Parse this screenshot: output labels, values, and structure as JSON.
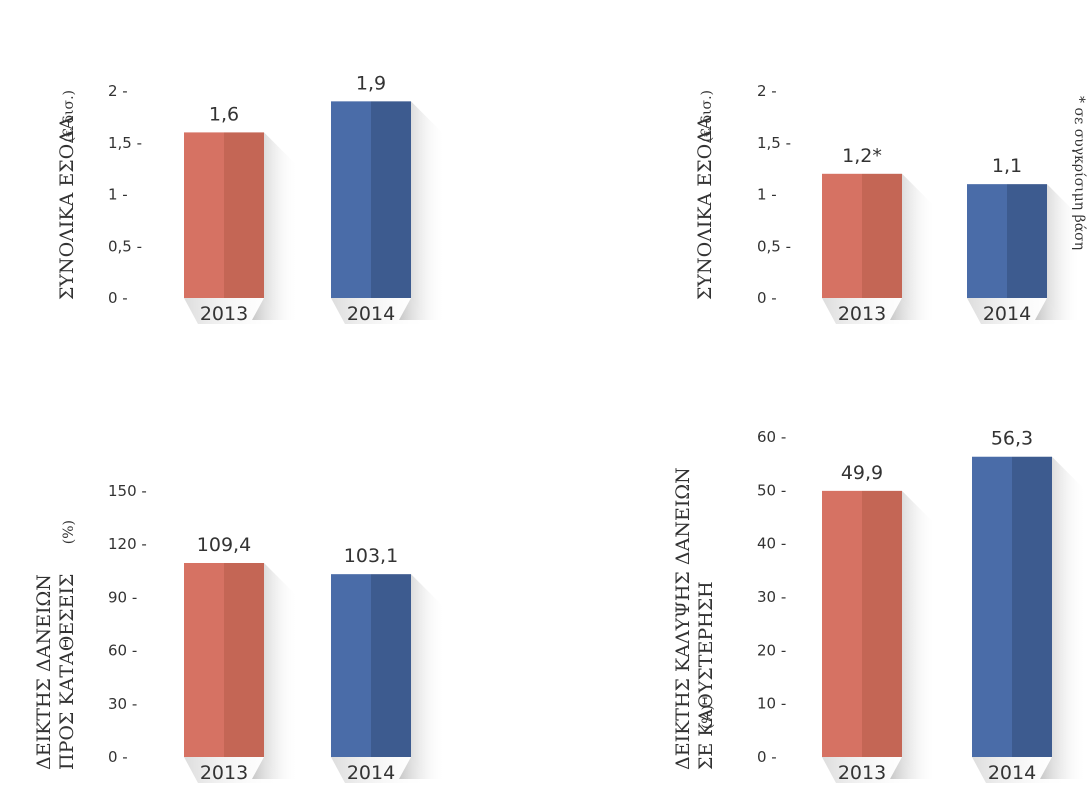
{
  "colors": {
    "bar_2013": "#d67263",
    "bar_2013_dark": "#c46655",
    "bar_2014": "#4a6ca8",
    "bar_2014_dark": "#3d5b8f",
    "shadow": "#cfcfcf"
  },
  "chart_data": [
    {
      "type": "bar",
      "ylabel": "ΣΥΝΟΛΙΚΑ ΕΣΟΔΑ",
      "ylabel_unit": "(€ δισ.)",
      "categories": [
        "2013",
        "2014"
      ],
      "values": [
        1.6,
        1.9
      ],
      "value_labels": [
        "1,6",
        "1,9"
      ],
      "yticks": [
        0,
        0.5,
        1,
        1.5,
        2
      ],
      "ytick_labels": [
        "0 -",
        "0,5 -",
        "1 -",
        "1,5 -",
        "2 -"
      ],
      "ylim": [
        0,
        2
      ],
      "grid": false
    },
    {
      "type": "bar",
      "ylabel": "ΣΥΝΟΛΙΚΑ ΕΣΟΔΑ",
      "ylabel_unit": "(€ δισ.)",
      "categories": [
        "2013",
        "2014"
      ],
      "values": [
        1.2,
        1.1
      ],
      "value_labels": [
        "1,2*",
        "1,1"
      ],
      "yticks": [
        0,
        0.5,
        1,
        1.5,
        2
      ],
      "ytick_labels": [
        "0 -",
        "0,5 -",
        "1 -",
        "1,5 -",
        "2 -"
      ],
      "ylim": [
        0,
        2
      ],
      "grid": false,
      "footnote": "* σε συγκρίσιμη βάση"
    },
    {
      "type": "bar",
      "ylabel": "ΔΕΙΚΤΗΣ ΔΑΝΕΙΩΝ",
      "ylabel_line2": "ΠΡΟΣ ΚΑΤΑΘΕΣΕΙΣ",
      "ylabel_unit": "(%)",
      "categories": [
        "2013",
        "2014"
      ],
      "values": [
        109.4,
        103.1
      ],
      "value_labels": [
        "109,4",
        "103,1"
      ],
      "yticks": [
        0,
        30,
        60,
        90,
        120,
        150
      ],
      "ytick_labels": [
        "0 -",
        "30 -",
        "60 -",
        "90 -",
        "120 -",
        "150 -"
      ],
      "ylim": [
        0,
        150
      ],
      "grid": false
    },
    {
      "type": "bar",
      "ylabel": "ΔΕΙΚΤΗΣ ΚΑΛΥΨΗΣ ΔΑΝΕΙΩΝ",
      "ylabel_line2": "ΣΕ ΚΑΘΥΣΤΕΡΗΣΗ",
      "ylabel_unit": "(%)",
      "categories": [
        "2013",
        "2014"
      ],
      "values": [
        49.9,
        56.3
      ],
      "value_labels": [
        "49,9",
        "56,3"
      ],
      "yticks": [
        0,
        10,
        20,
        30,
        40,
        50,
        60
      ],
      "ytick_labels": [
        "0 -",
        "10 -",
        "20 -",
        "30 -",
        "40 -",
        "50 -",
        "60 -"
      ],
      "ylim": [
        0,
        60
      ],
      "grid": false
    }
  ]
}
